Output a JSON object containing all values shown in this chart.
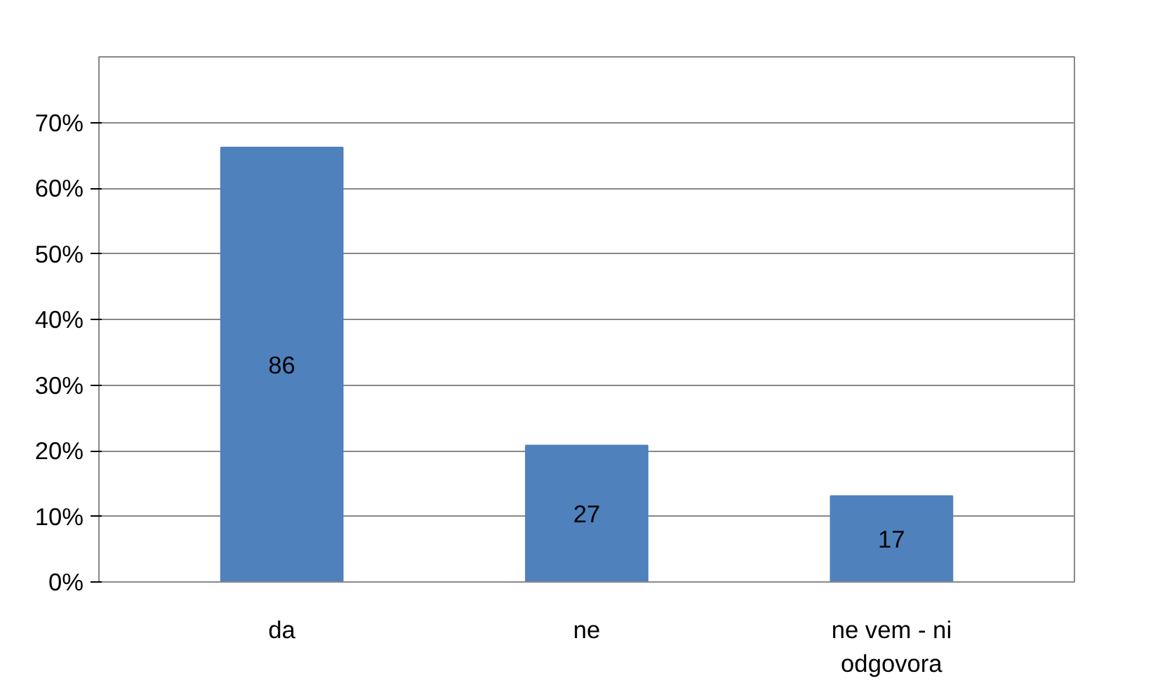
{
  "chart_data": {
    "type": "bar",
    "categories": [
      "da",
      "ne",
      "ne vem - ni\nodgovora"
    ],
    "values": [
      66.2,
      20.8,
      13.1
    ],
    "annotations": [
      "86",
      "27",
      "17"
    ],
    "color": "#4f81bd",
    "ylim": [
      0,
      80
    ],
    "yticks": [
      {
        "value": 0,
        "label": "0%"
      },
      {
        "value": 10,
        "label": "10%"
      },
      {
        "value": 20,
        "label": "20%"
      },
      {
        "value": 30,
        "label": "30%"
      },
      {
        "value": 40,
        "label": "40%"
      },
      {
        "value": 50,
        "label": "50%"
      },
      {
        "value": 60,
        "label": "60%"
      },
      {
        "value": 70,
        "label": "70%"
      }
    ],
    "grid": "y"
  }
}
